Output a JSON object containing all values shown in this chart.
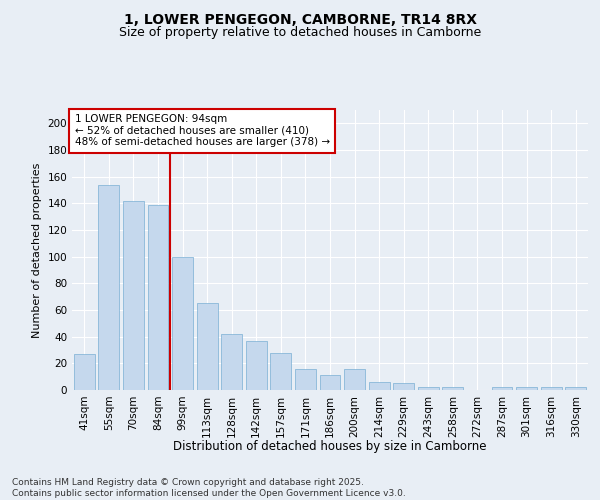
{
  "title": "1, LOWER PENGEGON, CAMBORNE, TR14 8RX",
  "subtitle": "Size of property relative to detached houses in Camborne",
  "xlabel": "Distribution of detached houses by size in Camborne",
  "ylabel": "Number of detached properties",
  "categories": [
    "41sqm",
    "55sqm",
    "70sqm",
    "84sqm",
    "99sqm",
    "113sqm",
    "128sqm",
    "142sqm",
    "157sqm",
    "171sqm",
    "186sqm",
    "200sqm",
    "214sqm",
    "229sqm",
    "243sqm",
    "258sqm",
    "272sqm",
    "287sqm",
    "301sqm",
    "316sqm",
    "330sqm"
  ],
  "values": [
    27,
    154,
    142,
    139,
    100,
    65,
    42,
    37,
    28,
    16,
    11,
    16,
    6,
    5,
    2,
    2,
    0,
    2,
    2,
    2,
    2
  ],
  "bar_color": "#c5d8ed",
  "bar_edge_color": "#7aafd4",
  "vline_color": "#cc0000",
  "vline_pos": 3.5,
  "annotation_title": "1 LOWER PENGEGON: 94sqm",
  "annotation_line1": "← 52% of detached houses are smaller (410)",
  "annotation_line2": "48% of semi-detached houses are larger (378) →",
  "annotation_box_edgecolor": "#cc0000",
  "ylim": [
    0,
    210
  ],
  "yticks": [
    0,
    20,
    40,
    60,
    80,
    100,
    120,
    140,
    160,
    180,
    200
  ],
  "footer": "Contains HM Land Registry data © Crown copyright and database right 2025.\nContains public sector information licensed under the Open Government Licence v3.0.",
  "background_color": "#e8eef5",
  "grid_color": "#ffffff",
  "title_fontsize": 10,
  "subtitle_fontsize": 9,
  "xlabel_fontsize": 8.5,
  "ylabel_fontsize": 8,
  "tick_fontsize": 7.5,
  "annotation_fontsize": 7.5,
  "footer_fontsize": 6.5
}
